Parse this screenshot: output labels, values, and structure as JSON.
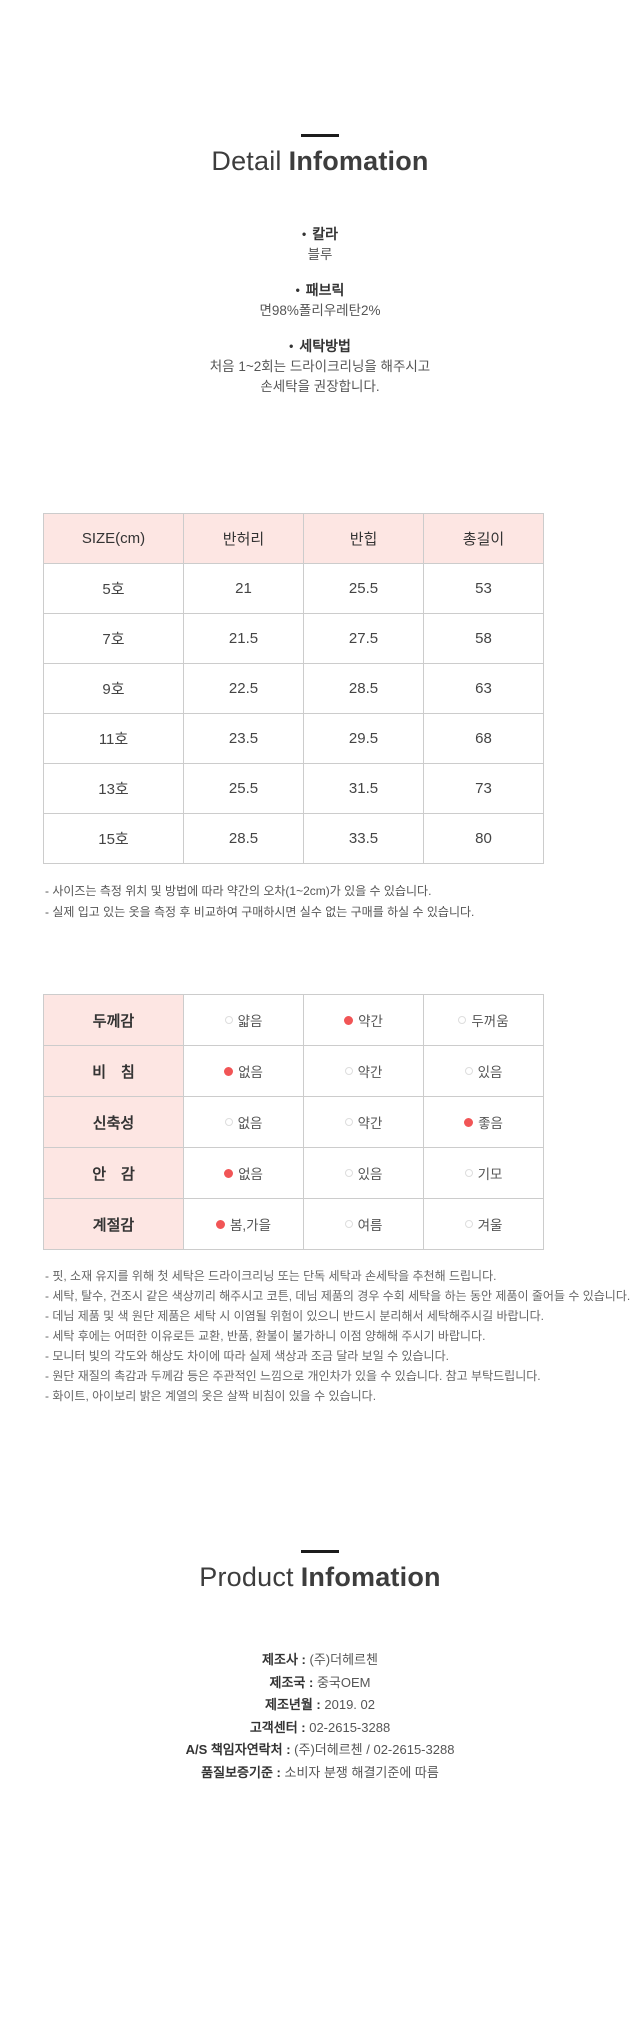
{
  "ui": {
    "bullet": "•",
    "colors": {
      "accent_pink_bg": "#fde6e3",
      "selected_dot_red": "#f15556",
      "table_border": "#cccccc",
      "title_text": "#3d3d3d",
      "body_text": "#555555"
    }
  },
  "detail_section": {
    "title_light": "Detail",
    "title_bold": "Infomation",
    "info_items": [
      {
        "label": "칼라",
        "lines": [
          "블루"
        ]
      },
      {
        "label": "패브릭",
        "lines": [
          "면98%폴리우레탄2%"
        ]
      },
      {
        "label": "세탁방법",
        "lines": [
          "처음 1~2회는 드라이크리닝을 해주시고",
          "손세탁을 권장합니다."
        ]
      }
    ]
  },
  "size_table": {
    "headers": [
      "SIZE(cm)",
      "반허리",
      "반힙",
      "총길이"
    ],
    "rows": [
      [
        "5호",
        "21",
        "25.5",
        "53"
      ],
      [
        "7호",
        "21.5",
        "27.5",
        "58"
      ],
      [
        "9호",
        "22.5",
        "28.5",
        "63"
      ],
      [
        "11호",
        "23.5",
        "29.5",
        "68"
      ],
      [
        "13호",
        "25.5",
        "31.5",
        "73"
      ],
      [
        "15호",
        "28.5",
        "33.5",
        "80"
      ]
    ],
    "notes": [
      "- 사이즈는 측정 위치 및 방법에 따라 약간의 오차(1~2cm)가 있을 수 있습니다.",
      "- 실제 입고 있는 옷을 측정 후 비교하여 구매하시면 실수 없는 구매를 하실 수 있습니다."
    ]
  },
  "property_table": {
    "rows": [
      {
        "label": "두께감",
        "options": [
          "얇음",
          "약간",
          "두꺼움"
        ],
        "selected": 1
      },
      {
        "label": "비　침",
        "options": [
          "없음",
          "약간",
          "있음"
        ],
        "selected": 0
      },
      {
        "label": "신축성",
        "options": [
          "없음",
          "약간",
          "좋음"
        ],
        "selected": 2
      },
      {
        "label": "안　감",
        "options": [
          "없음",
          "있음",
          "기모"
        ],
        "selected": 0
      },
      {
        "label": "계절감",
        "options": [
          "봄,가을",
          "여름",
          "겨울"
        ],
        "selected": 0
      }
    ]
  },
  "care_notes": [
    "- 핏, 소재 유지를 위해 첫 세탁은 드라이크리닝 또는 단독 세탁과 손세탁을 추천해 드립니다.",
    "- 세탁, 탈수, 건조시 같은 색상끼리 해주시고 코튼, 데님 제품의 경우 수회 세탁을 하는 동안 제품이 줄어들 수 있습니다.",
    "- 데님 제품 및 색 원단 제품은 세탁 시 이염될 위험이 있으니 반드시 분리해서 세탁해주시길 바랍니다.",
    "- 세탁 후에는 어떠한 이유로든 교환, 반품, 환불이 불가하니 이점 양해해 주시기 바랍니다.",
    "- 모니터 빛의 각도와 해상도 차이에 따라 실제 색상과 조금 달라 보일 수 있습니다.",
    "- 원단 재질의 촉감과 두께감 등은 주관적인 느낌으로 개인차가 있을 수 있습니다. 참고 부탁드립니다.",
    "- 화이트, 아이보리 밝은 계열의 옷은 살짝 비침이 있을 수 있습니다."
  ],
  "product_section": {
    "title_light": "Product",
    "title_bold": "Infomation",
    "fields": [
      {
        "label": "제조사 :",
        "value": "(주)더헤르첸"
      },
      {
        "label": "제조국 :",
        "value": "중국OEM"
      },
      {
        "label": "제조년월 :",
        "value": "2019. 02"
      },
      {
        "label": "고객센터 :",
        "value": "02-2615-3288"
      },
      {
        "label": "A/S 책임자연락처 :",
        "value": "(주)더헤르첸 / 02-2615-3288"
      },
      {
        "label": "품질보증기준 :",
        "value": "소비자 분쟁 해결기준에 따름"
      }
    ]
  }
}
